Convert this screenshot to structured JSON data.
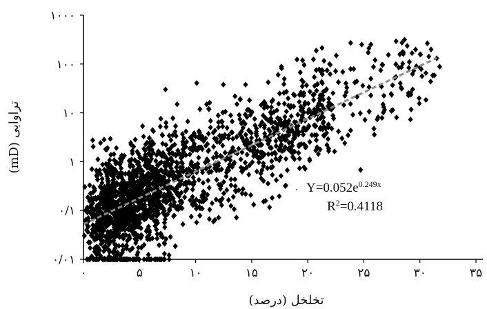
{
  "chart_data": {
    "type": "scatter",
    "xlabel": "تخلخل (درصد)",
    "ylabel": "تراوایی (mD)",
    "x_tick_labels": [
      "۰",
      "۵",
      "۱۰",
      "۱۵",
      "۲۰",
      "۲۵",
      "۳۰",
      "۳۵"
    ],
    "x_tick_values": [
      0,
      5,
      10,
      15,
      20,
      25,
      30,
      35
    ],
    "y_tick_labels": [
      "۰/۰۱",
      "۰/۱",
      "۱",
      "۱۰",
      "۱۰۰",
      "۱۰۰۰"
    ],
    "y_tick_values": [
      0.01,
      0.1,
      1,
      10,
      100,
      1000
    ],
    "xlim": [
      0,
      35
    ],
    "ylim": [
      0.01,
      1000
    ],
    "y_scale": "log",
    "grid": false,
    "marker": "diamond",
    "marker_color": "#000000",
    "trendline": {
      "type": "exponential",
      "a": 0.052,
      "b": 0.249,
      "x_range": [
        0,
        31.5
      ],
      "color": "#8a8a8a",
      "style": "dashed",
      "equation_prefix": "Y=0.052e",
      "equation_exponent": "0.249x",
      "r2_prefix": "R",
      "r2_super": "2",
      "r2_suffix": "=0.4118"
    },
    "series": [
      {
        "points_count": 2000,
        "point_cloud_summary": {
          "x_range": [
            0,
            32
          ],
          "y_range": [
            0.01,
            300
          ],
          "center_line": "follows Y=0.052e^(0.249x) with about one decade of vertical spread",
          "dense_region_x": [
            1,
            8
          ],
          "floor_cluster_y": 0.01
        }
      }
    ]
  }
}
